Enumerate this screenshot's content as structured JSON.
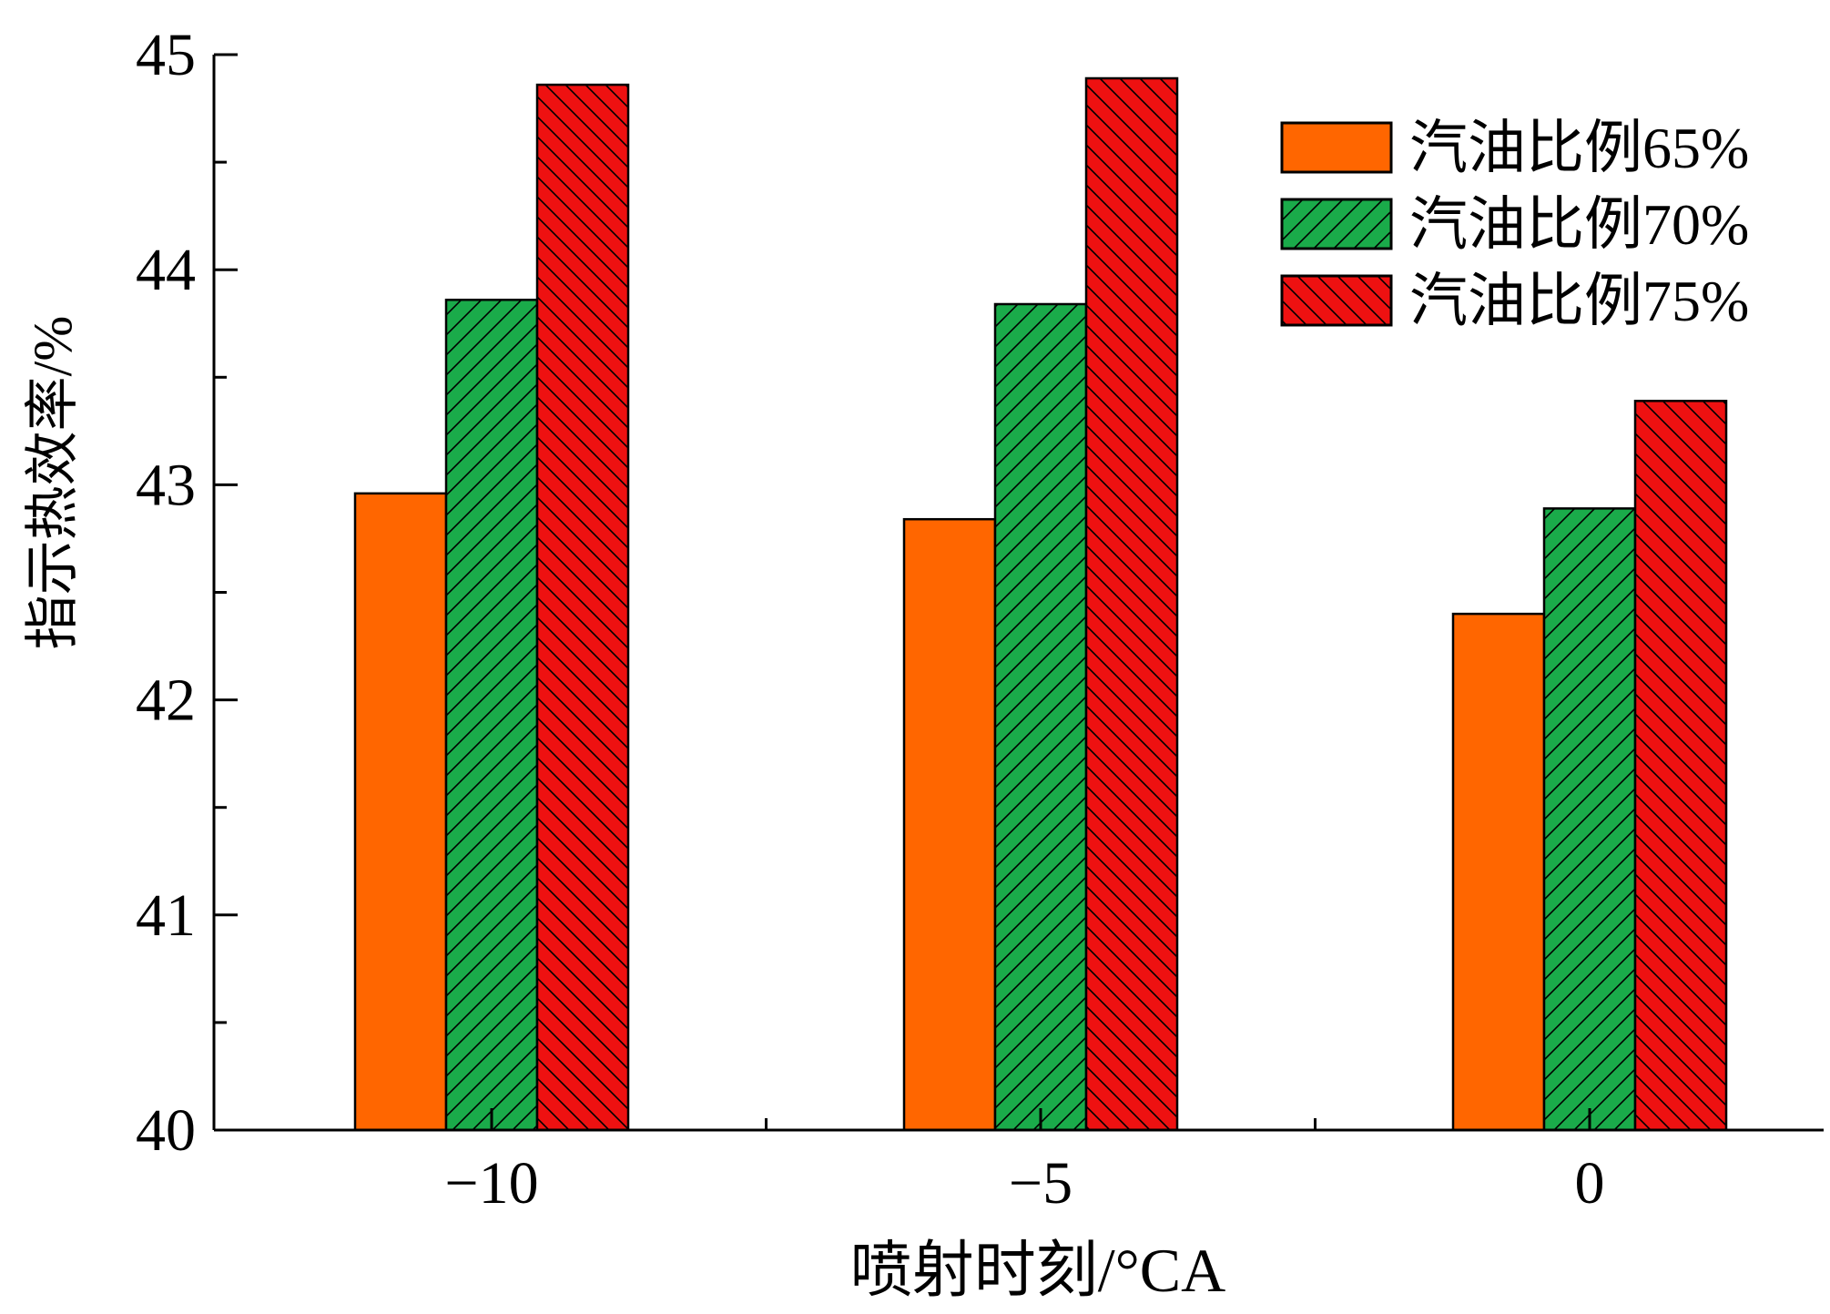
{
  "chart_data": {
    "type": "bar",
    "ylabel": "指示热效率/%",
    "xlabel": "喷射时刻/°CA",
    "categories": [
      "−10",
      "−5",
      "0"
    ],
    "ylim": [
      40,
      45
    ],
    "yticks": [
      "40",
      "41",
      "42",
      "43",
      "44",
      "45"
    ],
    "grid": false,
    "legend_position": "top-right",
    "series": [
      {
        "name": "汽油比例65%",
        "values": [
          42.96,
          42.84,
          42.4
        ],
        "color": "#ff6600",
        "pattern": "solid"
      },
      {
        "name": "汽油比例70%",
        "values": [
          43.86,
          43.84,
          42.89
        ],
        "color": "#1aab4a",
        "pattern": "forward-hatch"
      },
      {
        "name": "汽油比例75%",
        "values": [
          44.86,
          44.89,
          43.39
        ],
        "color": "#ee1111",
        "pattern": "back-hatch"
      }
    ]
  }
}
